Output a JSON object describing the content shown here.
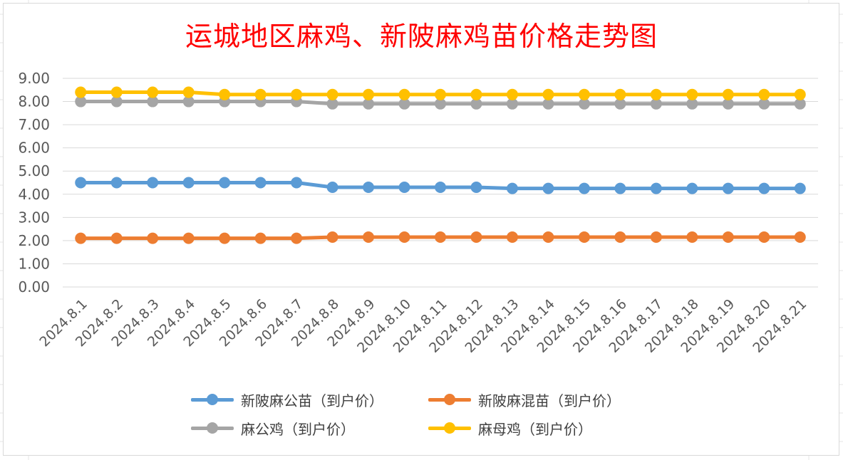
{
  "chart_data": {
    "type": "line",
    "title": "运城地区麻鸡、新陂麻鸡苗价格走势图",
    "xlabel": "",
    "ylabel": "",
    "ylim": [
      0,
      9
    ],
    "y_ticks": [
      "0.00",
      "1.00",
      "2.00",
      "3.00",
      "4.00",
      "5.00",
      "6.00",
      "7.00",
      "8.00",
      "9.00"
    ],
    "categories": [
      "2024.8.1",
      "2024.8.2",
      "2024.8.3",
      "2024.8.4",
      "2024.8.5",
      "2024.8.6",
      "2024.8.7",
      "2024.8.8",
      "2024.8.9",
      "2024.8.10",
      "2024.8.11",
      "2024.8.12",
      "2024.8.13",
      "2024.8.14",
      "2024.8.15",
      "2024.8.16",
      "2024.8.17",
      "2024.8.18",
      "2024.8.19",
      "2024.8.20",
      "2024.8.21"
    ],
    "grid": true,
    "legend_position": "bottom",
    "series": [
      {
        "name": "新陂麻公苗（到户价）",
        "color": "#5b9bd5",
        "values": [
          4.5,
          4.5,
          4.5,
          4.5,
          4.5,
          4.5,
          4.5,
          4.3,
          4.3,
          4.3,
          4.3,
          4.3,
          4.25,
          4.25,
          4.25,
          4.25,
          4.25,
          4.25,
          4.25,
          4.25,
          4.25
        ]
      },
      {
        "name": "新陂麻混苗（到户价）",
        "color": "#ed7d31",
        "values": [
          2.1,
          2.1,
          2.1,
          2.1,
          2.1,
          2.1,
          2.1,
          2.15,
          2.15,
          2.15,
          2.15,
          2.15,
          2.15,
          2.15,
          2.15,
          2.15,
          2.15,
          2.15,
          2.15,
          2.15,
          2.15
        ]
      },
      {
        "name": "麻公鸡（到户价）",
        "color": "#a5a5a5",
        "values": [
          8.0,
          8.0,
          8.0,
          8.0,
          8.0,
          8.0,
          8.0,
          7.9,
          7.9,
          7.9,
          7.9,
          7.9,
          7.9,
          7.9,
          7.9,
          7.9,
          7.9,
          7.9,
          7.9,
          7.9,
          7.9
        ]
      },
      {
        "name": "麻母鸡（到户价）",
        "color": "#ffc000",
        "values": [
          8.4,
          8.4,
          8.4,
          8.4,
          8.3,
          8.3,
          8.3,
          8.3,
          8.3,
          8.3,
          8.3,
          8.3,
          8.3,
          8.3,
          8.3,
          8.3,
          8.3,
          8.3,
          8.3,
          8.3,
          8.3
        ]
      }
    ]
  }
}
